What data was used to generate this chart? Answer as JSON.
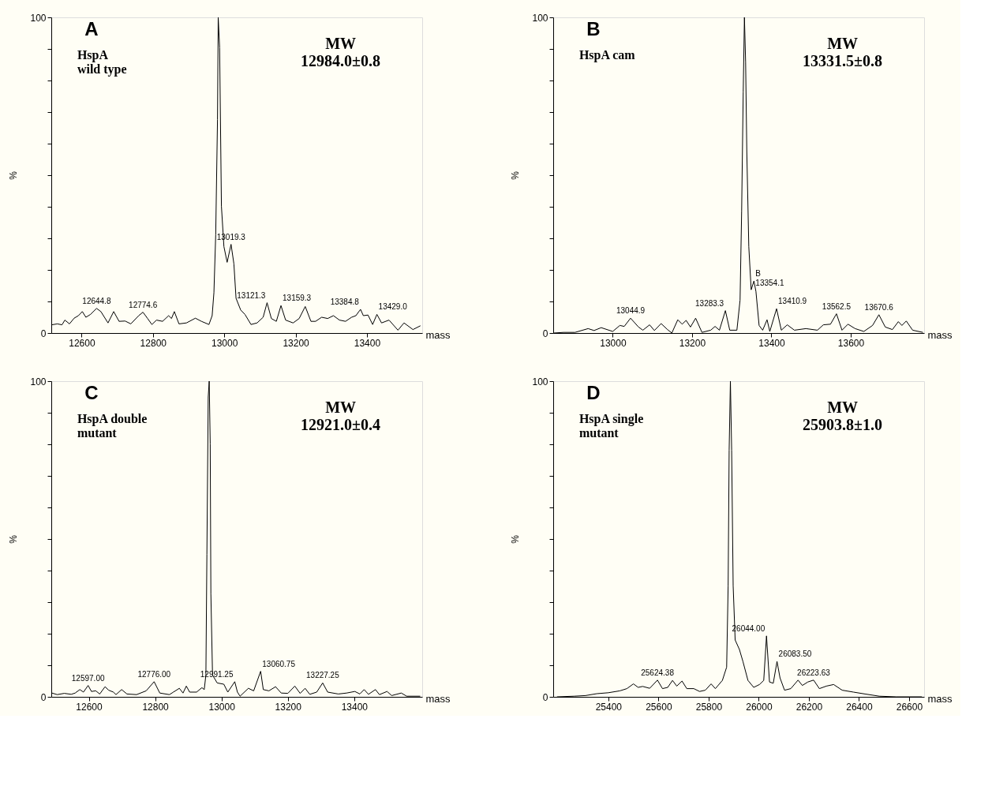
{
  "chart_data": [
    {
      "type": "line",
      "title": "A",
      "xlabel": "mass",
      "ylabel": "%",
      "xlim": [
        12515,
        13555
      ],
      "ylim": [
        0,
        100
      ],
      "xticks": [
        12600,
        12800,
        13000,
        13200,
        13400
      ],
      "yticks": [
        0,
        {
          "value": 10,
          "label": null
        },
        {
          "value": 20,
          "label": null
        },
        {
          "value": 30,
          "label": null
        },
        {
          "value": 40,
          "label": null
        },
        {
          "value": 50,
          "label": null
        },
        {
          "value": 60,
          "label": null
        },
        {
          "value": 70,
          "label": null
        },
        {
          "value": 80,
          "label": null
        },
        {
          "value": 90,
          "label": null
        },
        100
      ],
      "x": [
        12516,
        12532,
        12545,
        12553,
        12566,
        12579,
        12591,
        12602,
        12612,
        12625,
        12642,
        12654,
        12674,
        12690,
        12705,
        12722,
        12738,
        12760,
        12772,
        12785,
        12797,
        12810,
        12827,
        12844,
        12852,
        12860,
        12873,
        12894,
        12919,
        12936,
        12957,
        12966,
        12971,
        12976,
        12981,
        12983,
        12987,
        12992,
        12999,
        13008,
        13019,
        13027,
        13033,
        13046,
        13058,
        13075,
        13092,
        13109,
        13120,
        13132,
        13146,
        13159,
        13172,
        13193,
        13210,
        13227,
        13243,
        13256,
        13273,
        13290,
        13306,
        13323,
        13340,
        13357,
        13369,
        13382,
        13390,
        13403,
        13416,
        13428,
        13441,
        13462,
        13487,
        13504,
        13529,
        13550
      ],
      "series": [
        {
          "color": "#000000",
          "values": [
            2.6,
            2.9,
            2.6,
            4.1,
            2.9,
            4.7,
            5.5,
            6.8,
            5.0,
            5.9,
            7.8,
            6.8,
            3.2,
            6.8,
            3.7,
            3.8,
            2.9,
            5.5,
            6.6,
            4.6,
            2.7,
            4.1,
            3.7,
            5.5,
            4.6,
            6.8,
            2.9,
            3.2,
            4.7,
            3.7,
            2.7,
            5.5,
            12.8,
            31.1,
            67.6,
            100,
            90.4,
            40.2,
            27.4,
            22.4,
            28.1,
            21.9,
            11.0,
            7.3,
            5.9,
            2.7,
            3.2,
            5.0,
            9.6,
            4.6,
            3.7,
            8.7,
            4.1,
            3.2,
            4.6,
            8.4,
            3.7,
            3.7,
            5.0,
            4.6,
            5.5,
            4.1,
            3.7,
            5.0,
            5.5,
            7.5,
            5.5,
            5.7,
            2.7,
            5.9,
            3.2,
            4.1,
            0.9,
            3.2,
            1.1,
            2.3
          ]
        }
      ],
      "annotations": [
        "HspA\n wild type",
        "MW\n12984.0±0.8",
        {
          "text": "12644.8",
          "x": 12642,
          "y": 7.8
        },
        {
          "text": "12774.6",
          "x": 12772,
          "y": 6.6
        },
        {
          "text": "13019.3",
          "x": 13019,
          "y": 28.1
        },
        {
          "text": "13121.3",
          "x": 13120,
          "y": 9.6
        },
        {
          "text": "13159.3",
          "x": 13159,
          "y": 8.7
        },
        {
          "text": "13384.8",
          "x": 13382,
          "y": 7.5
        },
        {
          "text": "13429.0",
          "x": 13428,
          "y": 5.9
        }
      ]
    },
    {
      "type": "line",
      "title": "B",
      "xlabel": "mass",
      "ylabel": "%",
      "xlim": [
        12850,
        13785
      ],
      "ylim": [
        0,
        100
      ],
      "xticks": [
        13000,
        13200,
        13400,
        13600
      ],
      "yticks": [
        0,
        {
          "value": 10,
          "label": null
        },
        {
          "value": 20,
          "label": null
        },
        {
          "value": 30,
          "label": null
        },
        {
          "value": 40,
          "label": null
        },
        {
          "value": 50,
          "label": null
        },
        {
          "value": 60,
          "label": null
        },
        {
          "value": 70,
          "label": null
        },
        {
          "value": 80,
          "label": null
        },
        {
          "value": 90,
          "label": null
        },
        100
      ],
      "x": [
        12851,
        12876,
        12905,
        12938,
        12953,
        12971,
        13000,
        13018,
        13029,
        13045,
        13065,
        13076,
        13093,
        13105,
        13122,
        13138,
        13149,
        13164,
        13175,
        13185,
        13196,
        13209,
        13225,
        13247,
        13258,
        13269,
        13284,
        13295,
        13313,
        13321,
        13325,
        13329,
        13332,
        13335,
        13338,
        13343,
        13349,
        13356,
        13361,
        13369,
        13378,
        13389,
        13396,
        13413,
        13425,
        13440,
        13458,
        13487,
        13516,
        13531,
        13549,
        13564,
        13578,
        13593,
        13611,
        13633,
        13655,
        13671,
        13687,
        13705,
        13720,
        13729,
        13740,
        13756,
        13782
      ],
      "series": [
        {
          "color": "#000000",
          "values": [
            0,
            0.2,
            0.2,
            1.4,
            0.8,
            1.7,
            0.5,
            2.4,
            2.1,
            4.7,
            1.9,
            0.9,
            2.6,
            0.8,
            3.0,
            1.1,
            0,
            4.2,
            2.8,
            4.0,
            1.9,
            4.7,
            0.2,
            0.9,
            2.1,
            0.9,
            7.1,
            0.9,
            0.9,
            10.4,
            38.7,
            76.4,
            100,
            85.8,
            57.5,
            27.4,
            13.7,
            16.5,
            13.2,
            2.4,
            0.9,
            4.2,
            0.5,
            7.7,
            0.9,
            2.6,
            0.9,
            1.4,
            0.9,
            2.6,
            2.8,
            6.1,
            0.9,
            2.8,
            1.4,
            0.5,
            2.4,
            5.8,
            1.9,
            1.1,
            3.6,
            2.4,
            3.8,
            0.9,
            0.2
          ]
        }
      ],
      "annotations": [
        "HspA cam",
        "MW\n13331.5±0.8",
        {
          "text": "13044.9",
          "x": 13045,
          "y": 4.7
        },
        {
          "text": "13283.3",
          "x": 13284,
          "y": 7.1
        },
        {
          "text": "B\n13354.1",
          "x": 13356,
          "y": 16.5
        },
        {
          "text": "13410.9",
          "x": 13413,
          "y": 7.7
        },
        {
          "text": "13562.5",
          "x": 13564,
          "y": 6.1
        },
        {
          "text": "13670.6",
          "x": 13671,
          "y": 5.8
        }
      ]
    },
    {
      "type": "line",
      "title": "C",
      "xlabel": "mass",
      "ylabel": "%",
      "xlim": [
        12487,
        13605
      ],
      "ylim": [
        0,
        100
      ],
      "xticks": [
        12600,
        12800,
        13000,
        13200,
        13400
      ],
      "yticks": [
        0,
        {
          "value": 10,
          "label": null
        },
        {
          "value": 20,
          "label": null
        },
        {
          "value": 30,
          "label": null
        },
        {
          "value": 40,
          "label": null
        },
        {
          "value": 50,
          "label": null
        },
        {
          "value": 60,
          "label": null
        },
        {
          "value": 70,
          "label": null
        },
        {
          "value": 80,
          "label": null
        },
        {
          "value": 90,
          "label": null
        },
        100
      ],
      "x": [
        12489,
        12505,
        12526,
        12547,
        12559,
        12573,
        12584,
        12598,
        12608,
        12621,
        12633,
        12649,
        12660,
        12674,
        12682,
        12699,
        12715,
        12744,
        12773,
        12797,
        12814,
        12843,
        12855,
        12873,
        12884,
        12894,
        12904,
        12925,
        12941,
        12948,
        12953,
        12956,
        12960,
        12963,
        12966,
        12968,
        12973,
        12987,
        13007,
        13019,
        13040,
        13048,
        13056,
        13081,
        13097,
        13118,
        13126,
        13143,
        13163,
        13180,
        13200,
        13221,
        13237,
        13252,
        13266,
        13287,
        13305,
        13320,
        13352,
        13377,
        13402,
        13417,
        13430,
        13443,
        13464,
        13476,
        13499,
        13513,
        13542,
        13558,
        13599
      ],
      "series": [
        {
          "color": "#000000",
          "values": [
            1.2,
            0.7,
            1.1,
            0.8,
            1.2,
            2.3,
            1.5,
            3.6,
            1.7,
            1.9,
            0.9,
            3.2,
            2.1,
            1.5,
            0.7,
            2.3,
            0.9,
            0.7,
            1.9,
            4.8,
            1.2,
            0.7,
            1.5,
            2.7,
            1.2,
            3.4,
            1.5,
            1.5,
            2.9,
            2.3,
            6.9,
            45.1,
            95.0,
            100,
            80.1,
            32.7,
            6.9,
            4.4,
            4.0,
            1.5,
            4.8,
            1.5,
            0.2,
            2.7,
            1.9,
            8.1,
            2.3,
            1.9,
            3.2,
            1.2,
            1.1,
            3.4,
            1.1,
            2.7,
            0.8,
            1.5,
            4.4,
            1.5,
            0.9,
            1.2,
            1.7,
            0.9,
            2.3,
            0.8,
            2.3,
            0.7,
            1.7,
            0.4,
            1.2,
            0.2,
            0.2
          ]
        }
      ],
      "annotations": [
        "HspA double\n mutant",
        "MW\n12921.0±0.4",
        {
          "text": "12597.00",
          "x": 12598,
          "y": 3.6
        },
        {
          "text": "12776.00",
          "x": 12797,
          "y": 4.8
        },
        {
          "text": "12991.25",
          "x": 13040,
          "y": 4.8
        },
        {
          "text": "13060.75",
          "x": 13118,
          "y": 8.1
        },
        {
          "text": "13227.25",
          "x": 13305,
          "y": 4.4
        }
      ]
    },
    {
      "type": "line",
      "title": "D",
      "xlabel": "mass",
      "ylabel": "%",
      "xlim": [
        25180,
        26660
      ],
      "ylim": [
        0,
        100
      ],
      "xticks": [
        25400,
        25600,
        25800,
        26000,
        26200,
        26400,
        26600
      ],
      "yticks": [
        0,
        {
          "value": 10,
          "label": null
        },
        {
          "value": 20,
          "label": null
        },
        {
          "value": 30,
          "label": null
        },
        {
          "value": 40,
          "label": null
        },
        {
          "value": 50,
          "label": null
        },
        {
          "value": 60,
          "label": null
        },
        {
          "value": 70,
          "label": null
        },
        {
          "value": 80,
          "label": null
        },
        {
          "value": 90,
          "label": null
        },
        100
      ],
      "x": [
        25195,
        25263,
        25309,
        25354,
        25400,
        25446,
        25474,
        25500,
        25519,
        25537,
        25565,
        25596,
        25616,
        25637,
        25656,
        25673,
        25694,
        25713,
        25741,
        25764,
        25787,
        25810,
        25827,
        25855,
        25872,
        25878,
        25882,
        25887,
        25892,
        25898,
        25906,
        25923,
        25937,
        25957,
        25980,
        26003,
        26020,
        26031,
        26043,
        26058,
        26073,
        26085,
        26103,
        26128,
        26157,
        26174,
        26196,
        26219,
        26242,
        26270,
        26299,
        26333,
        26378,
        26424,
        26481,
        26549,
        26651
      ],
      "series": [
        {
          "color": "#000000",
          "values": [
            0,
            0.2,
            0.4,
            1.0,
            1.3,
            1.9,
            2.6,
            4.1,
            3.0,
            3.3,
            2.7,
            5.3,
            2.6,
            3.0,
            5.2,
            3.4,
            5.0,
            2.6,
            2.6,
            1.7,
            2.1,
            4.1,
            2.6,
            5.2,
            9.4,
            35.2,
            78.1,
            100,
            78.1,
            35.2,
            18.0,
            15.0,
            11.2,
            5.2,
            3.0,
            3.9,
            5.2,
            19.3,
            4.7,
            4.3,
            11.2,
            6.0,
            2.1,
            2.6,
            5.3,
            3.6,
            4.7,
            5.3,
            2.6,
            3.4,
            3.9,
            2.1,
            1.5,
            0.9,
            0.2,
            0,
            0
          ]
        }
      ],
      "annotations": [
        "HspA single\n mutant",
        "MW\n25903.8±1.0",
        {
          "text": "25624.38",
          "x": 25596,
          "y": 5.3
        },
        {
          "text": "26044.00",
          "x": 26031,
          "y": 19.3
        },
        {
          "text": "26083.50",
          "x": 26073,
          "y": 11.2
        },
        {
          "text": "26223.63",
          "x": 26219,
          "y": 5.3
        }
      ]
    }
  ]
}
